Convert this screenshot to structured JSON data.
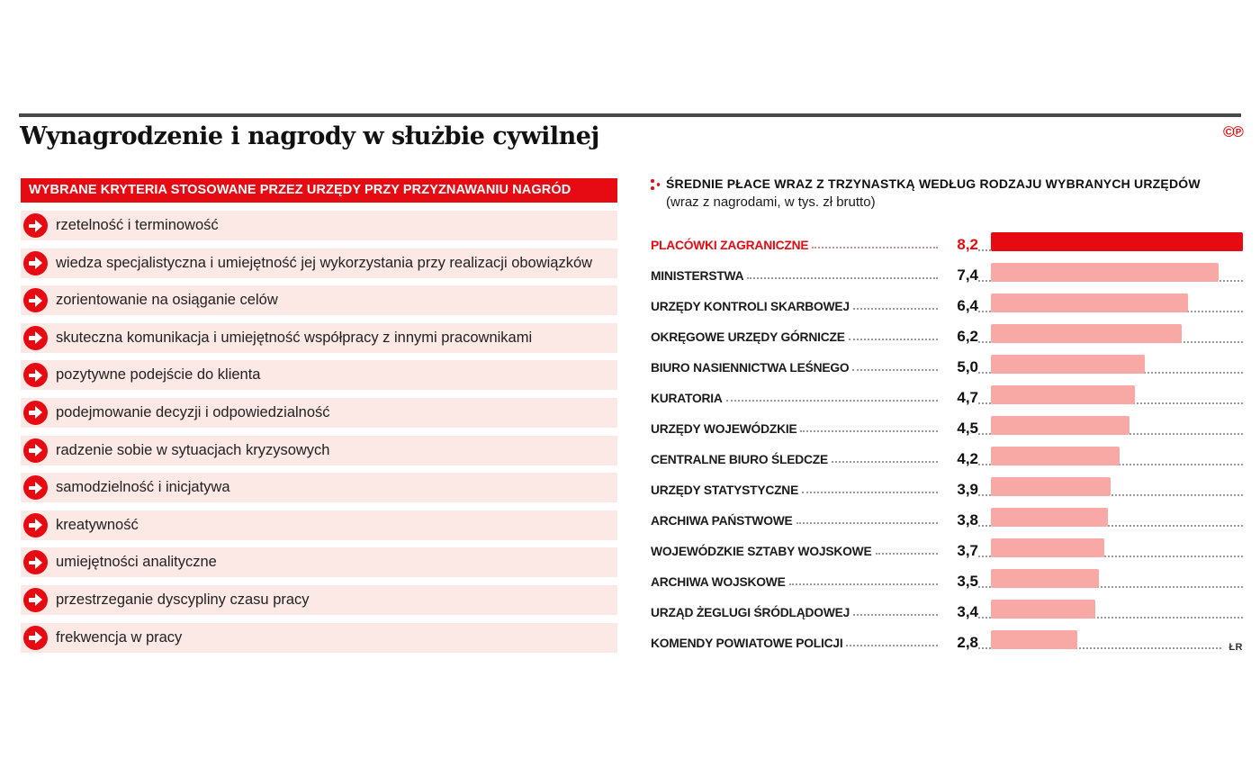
{
  "page": {
    "title": "Wynagrodzenie i nagrody w służbie cywilnej",
    "copyright_marks": [
      "©",
      "℗"
    ],
    "credit": "ŁR"
  },
  "criteria_panel": {
    "header": "WYBRANE KRYTERIA STOSOWANE PRZEZ URZĘDY PRZY PRZYZNAWANIU NAGRÓD",
    "items": [
      "rzetelność i terminowość",
      "wiedza specjalistyczna i umiejętność jej wykorzystania przy realizacji obowiązków",
      "zorientowanie na osiąganie celów",
      "skuteczna komunikacja i umiejętność współpracy z innymi pracownikami",
      "pozytywne podejście do klienta",
      "podejmowanie decyzji i odpowiedzialność",
      "radzenie sobie w sytuacjach kryzysowych",
      "samodzielność i inicjatywa",
      "kreatywność",
      "umiejętności analityczne",
      "przestrzeganie dyscypliny czasu pracy",
      "frekwencja w pracy"
    ]
  },
  "chart_data": {
    "type": "bar",
    "orientation": "horizontal",
    "title": "ŚREDNIE PŁACE WRAZ Z TRZYNASTKĄ WEDŁUG RODZAJU WYBRANYCH URZĘDÓW",
    "subtitle": "(wraz z nagrodami, w tys. zł brutto)",
    "unit": "tys. zł brutto",
    "xlim": [
      0,
      8.2
    ],
    "grid": false,
    "legend": false,
    "categories": [
      "PLACÓWKI ZAGRANICZNE",
      "MINISTERSTWA",
      "URZĘDY KONTROLI SKARBOWEJ",
      "OKRĘGOWE URZĘDY GÓRNICZE",
      "BIURO NASIENNICTWA LEŚNEGO",
      "KURATORIA",
      "URZĘDY WOJEWÓDZKIE",
      "CENTRALNE BIURO ŚLEDCZE",
      "URZĘDY STATYSTYCZNE",
      "ARCHIWA PAŃSTWOWE",
      "WOJEWÓDZKIE SZTABY WOJSKOWE",
      "ARCHIWA WOJSKOWE",
      "URZĄD ŻEGLUGI ŚRÓDLĄDOWEJ",
      "KOMENDY POWIATOWE POLICJI"
    ],
    "values": [
      8.2,
      7.4,
      6.4,
      6.2,
      5.0,
      4.7,
      4.5,
      4.2,
      3.9,
      3.8,
      3.7,
      3.5,
      3.4,
      2.8
    ],
    "value_labels": [
      "8,2",
      "7,4",
      "6,4",
      "6,2",
      "5,0",
      "4,7",
      "4,5",
      "4,2",
      "3,9",
      "3,8",
      "3,7",
      "3,5",
      "3,4",
      "2,8"
    ],
    "highlight_index": 0,
    "colors": {
      "highlight": "#e60b12",
      "bar": "#f8a9a5"
    }
  }
}
